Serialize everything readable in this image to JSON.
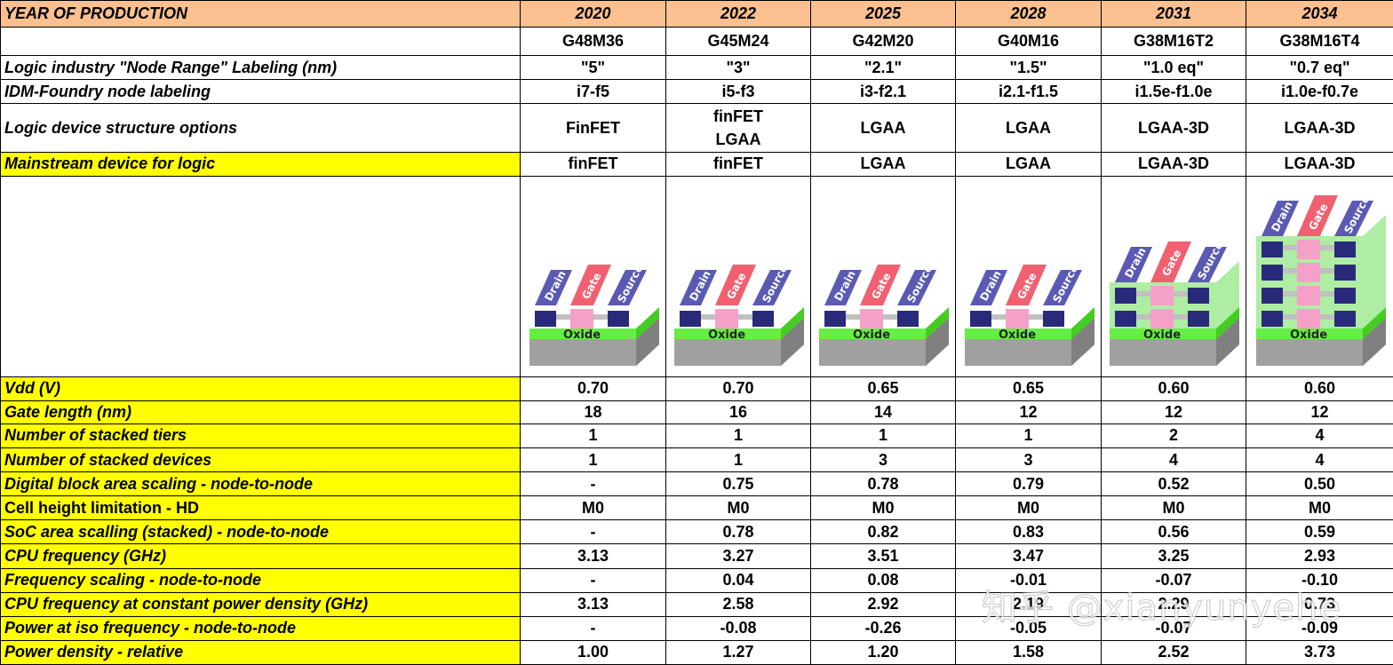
{
  "header": {
    "label": "YEAR OF PRODUCTION",
    "years": [
      "2020",
      "2022",
      "2025",
      "2028",
      "2031",
      "2034"
    ]
  },
  "rows": {
    "names": [
      "G48M36",
      "G45M24",
      "G42M20",
      "G40M16",
      "G38M16T2",
      "G38M16T4"
    ],
    "node_range": {
      "label": "Logic industry \"Node Range\" Labeling (nm)",
      "values": [
        "\"5\"",
        "\"3\"",
        "\"2.1\"",
        "\"1.5\"",
        "\"1.0 eq\"",
        "\"0.7 eq\""
      ]
    },
    "idm_foundry": {
      "label": "IDM-Foundry node labeling",
      "values": [
        "i7-f5",
        "i5-f3",
        "i3-f2.1",
        "i2.1-f1.5",
        "i1.5e-f1.0e",
        "i1.0e-f0.7e"
      ]
    },
    "structure_options": {
      "label": "Logic device structure options",
      "values": [
        "FinFET",
        [
          "finFET",
          "LGAA"
        ],
        "LGAA",
        "LGAA",
        "LGAA-3D",
        "LGAA-3D"
      ]
    },
    "mainstream": {
      "label": "Mainstream device for logic",
      "values": [
        "finFET",
        "finFET",
        "LGAA",
        "LGAA",
        "LGAA-3D",
        "LGAA-3D"
      ]
    },
    "illustration": {
      "labels": {
        "drain": "Drain",
        "gate": "Gate",
        "source": "Source",
        "oxide": "Oxide"
      },
      "tiers": [
        1,
        1,
        1,
        1,
        2,
        4
      ]
    },
    "metrics": [
      {
        "label": "Vdd (V)",
        "values": [
          "0.70",
          "0.70",
          "0.65",
          "0.65",
          "0.60",
          "0.60"
        ],
        "italic": true
      },
      {
        "label": "Gate length (nm)",
        "values": [
          "18",
          "16",
          "14",
          "12",
          "12",
          "12"
        ],
        "italic": true
      },
      {
        "label": "Number of stacked tiers",
        "values": [
          "1",
          "1",
          "1",
          "1",
          "2",
          "4"
        ],
        "italic": true
      },
      {
        "label": "Number of stacked devices",
        "values": [
          "1",
          "1",
          "3",
          "3",
          "4",
          "4"
        ],
        "italic": true
      },
      {
        "label": "Digital block area scaling - node-to-node",
        "values": [
          "-",
          "0.75",
          "0.78",
          "0.79",
          "0.52",
          "0.50"
        ],
        "italic": true
      },
      {
        "label": "Cell height limitation - HD",
        "values": [
          "M0",
          "M0",
          "M0",
          "M0",
          "M0",
          "M0"
        ],
        "italic": false
      },
      {
        "label": "SoC area scalling (stacked) - node-to-node",
        "values": [
          "-",
          "0.78",
          "0.82",
          "0.83",
          "0.56",
          "0.59"
        ],
        "italic": true
      },
      {
        "label": "CPU frequency (GHz)",
        "values": [
          "3.13",
          "3.27",
          "3.51",
          "3.47",
          "3.25",
          "2.93"
        ],
        "italic": true
      },
      {
        "label": "Frequency scaling - node-to-node",
        "values": [
          "-",
          "0.04",
          "0.08",
          "-0.01",
          "-0.07",
          "-0.10"
        ],
        "italic": true
      },
      {
        "label": "CPU frequency at constant power density (GHz)",
        "values": [
          "3.13",
          "2.58",
          "2.92",
          "2.19",
          "2.29",
          "0.73"
        ],
        "italic": true
      },
      {
        "label": "Power at iso frequency - node-to-node",
        "values": [
          "-",
          "-0.08",
          "-0.26",
          "-0.05",
          "-0.07",
          "-0.09"
        ],
        "italic": true
      },
      {
        "label": "Power density - relative",
        "values": [
          "1.00",
          "1.27",
          "1.20",
          "1.58",
          "2.52",
          "3.73"
        ],
        "italic": true
      }
    ]
  },
  "watermark": "知乎 @xianyunyehe",
  "colors": {
    "header_bg": "#fac090",
    "highlight": "#ffff00",
    "drain_source": "#5a5ab4",
    "gate": "#f06070",
    "oxide": "#66ee44",
    "substrate": "#a0a0a0"
  }
}
